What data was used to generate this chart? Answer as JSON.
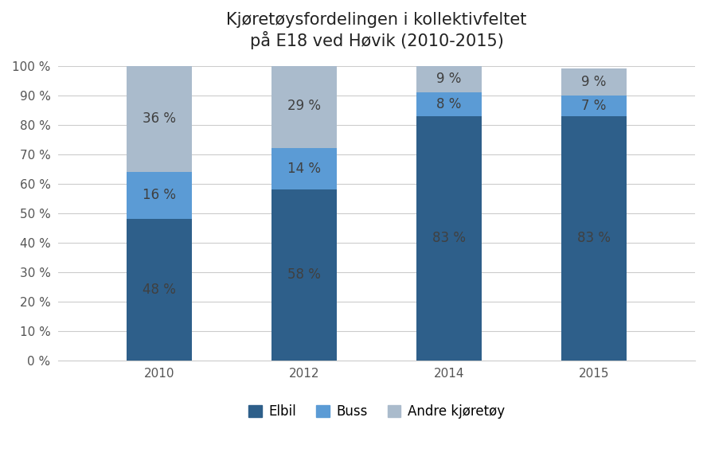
{
  "title": "Kjøretøysfordelingen i kollektivfeltet\npå E18 ved Høvik (2010-2015)",
  "categories": [
    "2010",
    "2012",
    "2014",
    "2015"
  ],
  "elbil": [
    48,
    58,
    83,
    83
  ],
  "buss": [
    16,
    14,
    8,
    7
  ],
  "andre": [
    36,
    29,
    9,
    9
  ],
  "color_elbil": "#2E5F8A",
  "color_buss": "#5B9BD5",
  "color_andre": "#AABBCC",
  "legend_labels": [
    "Elbil",
    "Buss",
    "Andre kjøretøy"
  ],
  "title_fontsize": 15,
  "tick_fontsize": 11,
  "label_fontsize": 12,
  "background_color": "#FFFFFF",
  "bar_width": 0.45,
  "text_color_dark": "#404040",
  "text_color_light": "#404040"
}
